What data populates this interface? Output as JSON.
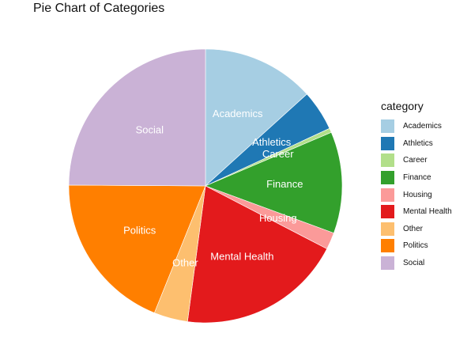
{
  "chart_data": {
    "type": "pie",
    "title": "Pie Chart of Categories",
    "legend_title": "category",
    "legend_position": "right",
    "direction": "clockwise from top",
    "slices": [
      {
        "label": "Academics",
        "value": 13.3,
        "color": "#A6CEE3",
        "legend": "Academics"
      },
      {
        "label": "Athletics",
        "value": 4.8,
        "color": "#1F78B4",
        "legend": "Athletics"
      },
      {
        "label": "Career",
        "value": 0.5,
        "color": "#B2DF8A",
        "legend": "Career"
      },
      {
        "label": "Finance",
        "value": 12.0,
        "color": "#33A02C",
        "legend": "Finance"
      },
      {
        "label": "Housing",
        "value": 2.0,
        "color": "#FB9A99",
        "legend": "Housing"
      },
      {
        "label": "Mental Health",
        "value": 19.5,
        "color": "#E31A1C",
        "legend": "Mental Health"
      },
      {
        "label": "Other",
        "value": 4.0,
        "color": "#FDBF6F",
        "legend": "Other"
      },
      {
        "label": "Politics",
        "value": 19.0,
        "color": "#FF7F00",
        "legend": "Politics"
      },
      {
        "label": "Social",
        "value": 24.9,
        "color": "#CAB2D6",
        "legend": "Social"
      }
    ]
  }
}
